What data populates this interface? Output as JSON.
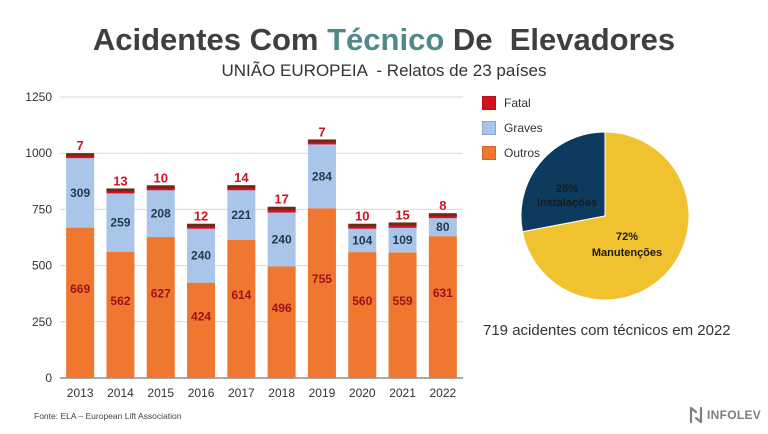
{
  "header": {
    "title_part1": "Acidentes Com ",
    "title_accent": "Técnico",
    "title_part2": " De  Elevadores",
    "subtitle": "UNIÃO EUROPEIA  - Relatos de 23 países"
  },
  "chart_data": [
    {
      "type": "bar",
      "stacked": true,
      "categories": [
        "2013",
        "2014",
        "2015",
        "2016",
        "2017",
        "2018",
        "2019",
        "2020",
        "2021",
        "2022"
      ],
      "series": [
        {
          "name": "Outros",
          "color": "#f0772f",
          "values": [
            669,
            562,
            627,
            424,
            614,
            496,
            755,
            560,
            559,
            631
          ]
        },
        {
          "name": "Graves",
          "color": "#a9c6ea",
          "values": [
            309,
            259,
            208,
            240,
            221,
            240,
            284,
            104,
            109,
            80
          ]
        },
        {
          "name": "Fatal",
          "color": "#d4121f",
          "values": [
            7,
            13,
            10,
            12,
            14,
            17,
            7,
            10,
            15,
            8
          ]
        }
      ],
      "ylim": [
        0,
        1250
      ],
      "yticks": [
        0,
        250,
        500,
        750,
        1000,
        1250
      ],
      "grid": true,
      "legend": "right"
    },
    {
      "type": "pie",
      "slices": [
        {
          "label": "Instalações",
          "value": 28,
          "color": "#0d3b5e"
        },
        {
          "label": "Manutenções",
          "value": 72,
          "color": "#f0c22f"
        }
      ]
    }
  ],
  "legend": [
    {
      "label": "Fatal",
      "color": "#d4121f"
    },
    {
      "label": "Graves",
      "color": "#a9c6ea"
    },
    {
      "label": "Outros",
      "color": "#f0772f"
    }
  ],
  "pie_labels": {
    "inst_pct": "28%",
    "inst_name": "Instalações",
    "man_pct": "72%",
    "man_name": "Manutenções"
  },
  "note": "719 acidentes com técnicos em 2022",
  "source": "Fonte: ELA – European Lift Association",
  "logo": "INFOLEV"
}
